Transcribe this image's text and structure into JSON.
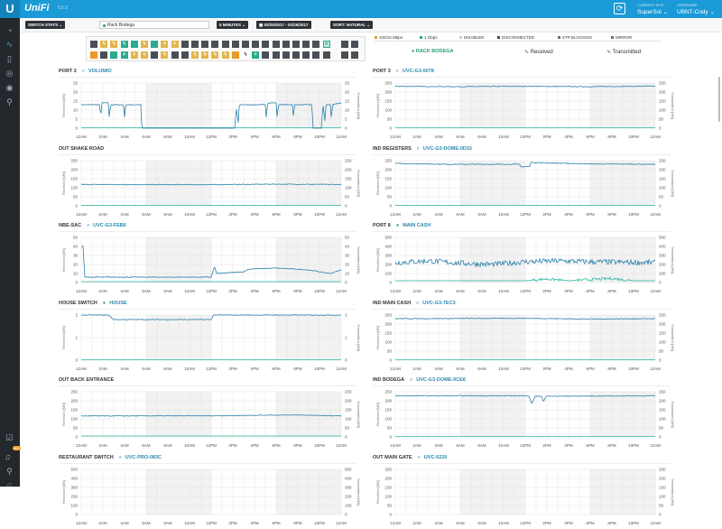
{
  "header": {
    "logo": "U",
    "brand": "UniFi",
    "version": "5.5.5",
    "current_site_label": "CURRENT SITE",
    "current_site": "SuperSol ⌄",
    "username_label": "USERNAME",
    "username": "UBNT-Cody ⌄"
  },
  "sidebar": {
    "icons": [
      "dashboard-icon",
      "statistics-icon",
      "map-icon",
      "devices-icon",
      "clients-icon",
      "insights-icon",
      "alerts-icon",
      "notifications-icon",
      "search-icon",
      "chat-icon"
    ],
    "notification_count": "99+"
  },
  "toolbar": {
    "stats": "SWITCH STATS ⌄",
    "device": "Rack Bodega",
    "interval": "5 MINUTES ⌄",
    "date_range": "▦ 02/25/2017 - 02/25/2017",
    "sort": "SORT: NATURAL ⌄"
  },
  "ports": {
    "row1": [
      "d",
      "y",
      "y",
      "t",
      "t",
      "y",
      "t",
      "y+",
      "y+",
      "d",
      "d",
      "d",
      "d",
      "d",
      "d",
      "d",
      "d",
      "d",
      "d",
      "d",
      "d",
      "d",
      "d",
      "u"
    ],
    "row2": [
      "o",
      "d",
      "t",
      "t+",
      "y+",
      "y+",
      "d",
      "y",
      "d",
      "d",
      "y",
      "y",
      "y",
      "y",
      "o",
      "w",
      "t+",
      "d",
      "d",
      "d",
      "d",
      "d",
      "d",
      "d"
    ],
    "sfp": [
      "d",
      "d"
    ]
  },
  "legend": {
    "items": [
      {
        "label": "100/10 Mbps",
        "color": "#e99a27"
      },
      {
        "label": "1 Gbps",
        "color": "#2bab8e"
      },
      {
        "label": "DISABLED",
        "color": "#ccc"
      },
      {
        "label": "DISCONNECTED",
        "color": "#4a4f55"
      },
      {
        "label": "STP BLOCKING",
        "color": ""
      },
      {
        "label": "MIRROR",
        "color": ""
      }
    ],
    "device": "RACK BODEGA",
    "received": "Received",
    "transmitted": "Transmitted"
  },
  "axis": {
    "left": "Received [MB]",
    "right": "Transmitted [MB]",
    "x_ticks": [
      "12AM",
      "2AM",
      "4AM",
      "6AM",
      "8AM",
      "10AM",
      "12PM",
      "2PM",
      "4PM",
      "6PM",
      "8PM",
      "10PM",
      "12AM"
    ]
  },
  "colors": {
    "received": "#2a7fa8",
    "transmitted": "#2bb5a0",
    "header": "#1a9ad6"
  },
  "chart_data": [
    {
      "type": "line",
      "title": "PORT 2",
      "device": "VOLUMIO",
      "icon": "device-icon",
      "ylim": [
        0,
        25
      ],
      "yticks": [
        0,
        5,
        10,
        15,
        20,
        25
      ],
      "received": [
        [
          0,
          13
        ],
        [
          1,
          13
        ],
        [
          1.7,
          13
        ],
        [
          1.8,
          6
        ],
        [
          1.9,
          14
        ],
        [
          2.5,
          14
        ],
        [
          2.6,
          5
        ],
        [
          2.7,
          13
        ],
        [
          3.9,
          13
        ],
        [
          4,
          6
        ],
        [
          4.1,
          13
        ],
        [
          5.5,
          13
        ],
        [
          5.6,
          0
        ],
        [
          14.2,
          0
        ],
        [
          14.3,
          12
        ],
        [
          14.5,
          3
        ],
        [
          14.6,
          13
        ],
        [
          17,
          13
        ],
        [
          17.1,
          5
        ],
        [
          17.2,
          14
        ],
        [
          18,
          14
        ],
        [
          18.1,
          5
        ],
        [
          18.2,
          13
        ],
        [
          19.5,
          13
        ],
        [
          19.6,
          6
        ],
        [
          19.7,
          13
        ],
        [
          21.3,
          13
        ],
        [
          21.4,
          0
        ],
        [
          22.2,
          0
        ],
        [
          22.3,
          14
        ],
        [
          22.5,
          4
        ],
        [
          22.6,
          13
        ],
        [
          23,
          13
        ],
        [
          23.1,
          5
        ],
        [
          23.2,
          13
        ],
        [
          24,
          14
        ]
      ],
      "transmitted": [
        [
          0,
          0.3
        ],
        [
          24,
          0.3
        ]
      ]
    },
    {
      "type": "line",
      "title": "PORT 3",
      "device": "UVC-G3-0078",
      "icon": "camera-icon",
      "ylim": [
        0,
        250
      ],
      "yticks": [
        0,
        50,
        100,
        150,
        200,
        250
      ],
      "received": [
        [
          0,
          232
        ],
        [
          6,
          230
        ],
        [
          12,
          232
        ],
        [
          18,
          230
        ],
        [
          24,
          233
        ]
      ],
      "transmitted": [
        [
          0,
          2
        ],
        [
          24,
          2
        ]
      ]
    },
    {
      "type": "line",
      "title": "OUT SHAKE ROAD",
      "device": "",
      "icon": "",
      "ylim": [
        0,
        250
      ],
      "yticks": [
        0,
        50,
        100,
        150,
        200,
        250
      ],
      "received": [
        [
          0,
          118
        ],
        [
          12,
          117
        ],
        [
          18,
          120
        ],
        [
          24,
          118
        ]
      ],
      "transmitted": [
        [
          0,
          2
        ],
        [
          24,
          2
        ]
      ]
    },
    {
      "type": "line",
      "title": "IND REGISTERS",
      "device": "UVC-G3-DOME-0D15",
      "icon": "camera-icon",
      "ylim": [
        0,
        250
      ],
      "yticks": [
        0,
        50,
        100,
        150,
        200,
        250
      ],
      "received": [
        [
          0,
          235
        ],
        [
          5,
          230
        ],
        [
          11.5,
          230
        ],
        [
          11.6,
          215
        ],
        [
          12.4,
          218
        ],
        [
          12.5,
          240
        ],
        [
          18,
          232
        ],
        [
          24,
          230
        ]
      ],
      "transmitted": [
        [
          0,
          2
        ],
        [
          24,
          2
        ]
      ]
    },
    {
      "type": "line",
      "title": "NBE-SAC",
      "device": "UVC-G3-FEB6",
      "icon": "camera-icon",
      "ylim": [
        0,
        50
      ],
      "yticks": [
        0,
        10,
        20,
        30,
        40,
        50
      ],
      "received": [
        [
          0,
          40
        ],
        [
          0.2,
          40
        ],
        [
          0.3,
          6
        ],
        [
          12,
          6
        ],
        [
          12.3,
          18
        ],
        [
          12.5,
          10
        ],
        [
          15,
          12
        ],
        [
          15.5,
          15
        ],
        [
          18,
          16
        ],
        [
          21,
          14
        ],
        [
          23,
          10
        ],
        [
          24,
          14
        ]
      ],
      "transmitted": [
        [
          0,
          1
        ],
        [
          24,
          1
        ]
      ]
    },
    {
      "type": "line",
      "title": "PORT 8",
      "device": "MAIN CASH",
      "icon": "status-dot",
      "ylim": [
        0,
        500
      ],
      "yticks": [
        0,
        100,
        200,
        300,
        400,
        500
      ],
      "received": [
        [
          0,
          220
        ],
        [
          3,
          240
        ],
        [
          6,
          215
        ],
        [
          9,
          200
        ],
        [
          12,
          230
        ],
        [
          15,
          240
        ],
        [
          18,
          230
        ],
        [
          21,
          225
        ],
        [
          24,
          220
        ]
      ],
      "transmitted": [
        [
          0,
          20
        ],
        [
          12,
          20
        ],
        [
          14,
          40
        ],
        [
          16,
          20
        ],
        [
          20,
          45
        ],
        [
          22,
          20
        ],
        [
          24,
          20
        ]
      ]
    },
    {
      "type": "line",
      "title": "HOUSE SWITCH",
      "device": "HOUSE",
      "icon": "status-dot",
      "ylim": [
        0,
        2
      ],
      "yticks": [
        0,
        1,
        2
      ],
      "received": [
        [
          0,
          2
        ],
        [
          2.5,
          2
        ],
        [
          3,
          1.8
        ],
        [
          12,
          1.8
        ],
        [
          12.2,
          2
        ],
        [
          24,
          2
        ]
      ],
      "transmitted": [
        [
          0,
          0.02
        ],
        [
          24,
          0.02
        ]
      ]
    },
    {
      "type": "line",
      "title": "IND MAIN CASH",
      "device": "UVC-G3-7EC3",
      "icon": "camera-icon",
      "ylim": [
        0,
        250
      ],
      "yticks": [
        0,
        50,
        100,
        150,
        200,
        250
      ],
      "received": [
        [
          0,
          230
        ],
        [
          12,
          232
        ],
        [
          18,
          228
        ],
        [
          24,
          230
        ]
      ],
      "transmitted": [
        [
          0,
          2
        ],
        [
          24,
          2
        ]
      ]
    },
    {
      "type": "line",
      "title": "OUT BACK ENTRANCE",
      "device": "",
      "icon": "",
      "ylim": [
        0,
        250
      ],
      "yticks": [
        0,
        50,
        100,
        150,
        200,
        250
      ],
      "received": [
        [
          0,
          116
        ],
        [
          12,
          117
        ],
        [
          20,
          122
        ],
        [
          24,
          116
        ]
      ],
      "transmitted": [
        [
          0,
          5
        ],
        [
          24,
          5
        ]
      ]
    },
    {
      "type": "line",
      "title": "IND BODEGA",
      "device": "UVC-G3-DOME-0CE6",
      "icon": "camera-icon",
      "ylim": [
        0,
        250
      ],
      "yticks": [
        0,
        50,
        100,
        150,
        200,
        250
      ],
      "received": [
        [
          0,
          228
        ],
        [
          12.3,
          228
        ],
        [
          12.6,
          185
        ],
        [
          12.9,
          225
        ],
        [
          13.5,
          225
        ],
        [
          13.7,
          195
        ],
        [
          13.9,
          225
        ],
        [
          24,
          228
        ]
      ],
      "transmitted": [
        [
          0,
          2
        ],
        [
          24,
          2
        ]
      ]
    },
    {
      "type": "line",
      "title": "RESTAURANT SWITCH",
      "device": "UVC-PRO-083C",
      "icon": "camera-icon",
      "ylim": [
        0,
        500
      ],
      "yticks": [
        0,
        100,
        200,
        300,
        400,
        500
      ],
      "received": [],
      "transmitted": []
    },
    {
      "type": "line",
      "title": "OUT MAIN GATE",
      "device": "UVC-0220",
      "icon": "camera-icon",
      "ylim": [
        0,
        250
      ],
      "yticks": [
        0,
        50,
        100,
        150,
        200,
        250
      ],
      "received": [],
      "transmitted": []
    }
  ]
}
